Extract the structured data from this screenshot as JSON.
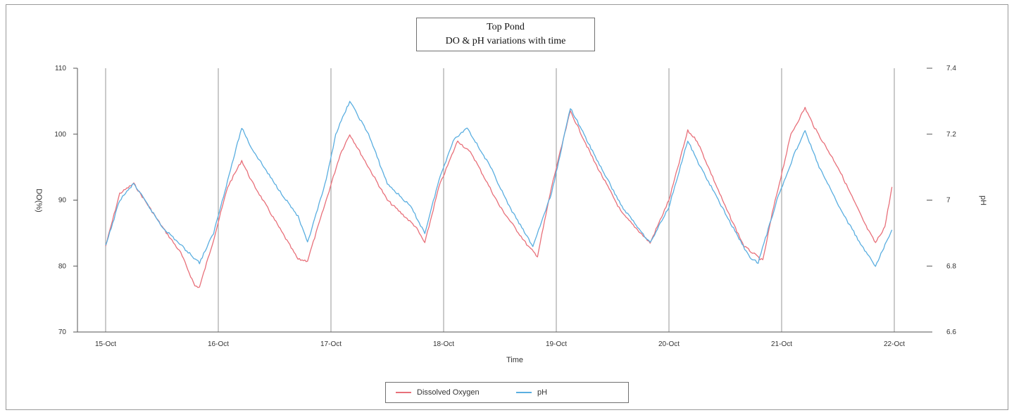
{
  "chart_data": {
    "type": "line",
    "title": "Top Pond",
    "subtitle": "DO & pH variations with time",
    "xlabel": "Time",
    "ylabel": "DO(%)",
    "y2label": "pH",
    "x_range": [
      "15-Oct",
      "22-Oct"
    ],
    "x_ticks": [
      "15-Oct",
      "16-Oct",
      "17-Oct",
      "18-Oct",
      "19-Oct",
      "20-Oct",
      "21-Oct",
      "22-Oct"
    ],
    "ylim": [
      70,
      110
    ],
    "y_ticks": [
      "70",
      "80",
      "90",
      "100",
      "110"
    ],
    "y2lim": [
      6.6,
      7.4
    ],
    "y2_ticks": [
      "6.6",
      "6.8",
      "7",
      "7.2",
      "7.4"
    ],
    "vertical_grid": true,
    "legend_position": "bottom",
    "series": [
      {
        "name": "Dissolved Oxygen",
        "axis": "left",
        "color": "#e8707a",
        "points": [
          [
            "15-Oct 00:00",
            83
          ],
          [
            "15-Oct 03:00",
            91
          ],
          [
            "15-Oct 06:00",
            92.5
          ],
          [
            "15-Oct 12:00",
            86
          ],
          [
            "15-Oct 16:00",
            82
          ],
          [
            "15-Oct 19:00",
            77
          ],
          [
            "15-Oct 20:00",
            76.8
          ],
          [
            "15-Oct 23:00",
            84
          ],
          [
            "16-Oct 02:00",
            92
          ],
          [
            "16-Oct 05:00",
            96
          ],
          [
            "16-Oct 07:00",
            93
          ],
          [
            "16-Oct 12:00",
            87
          ],
          [
            "16-Oct 17:00",
            81
          ],
          [
            "16-Oct 19:00",
            80.8
          ],
          [
            "16-Oct 23:00",
            90
          ],
          [
            "17-Oct 02:00",
            97
          ],
          [
            "17-Oct 04:00",
            100
          ],
          [
            "17-Oct 12:00",
            90
          ],
          [
            "17-Oct 18:00",
            86
          ],
          [
            "17-Oct 20:00",
            83.5
          ],
          [
            "17-Oct 23:00",
            92
          ],
          [
            "18-Oct 03:00",
            99
          ],
          [
            "18-Oct 06:00",
            97
          ],
          [
            "18-Oct 12:00",
            89
          ],
          [
            "18-Oct 18:00",
            83
          ],
          [
            "18-Oct 20:00",
            81.5
          ],
          [
            "18-Oct 23:00",
            92
          ],
          [
            "19-Oct 03:00",
            103.5
          ],
          [
            "19-Oct 08:00",
            96
          ],
          [
            "19-Oct 14:00",
            88
          ],
          [
            "19-Oct 20:00",
            83.5
          ],
          [
            "20-Oct 00:00",
            90
          ],
          [
            "20-Oct 04:00",
            100.5
          ],
          [
            "20-Oct 06:00",
            99
          ],
          [
            "20-Oct 12:00",
            89
          ],
          [
            "20-Oct 16:00",
            83
          ],
          [
            "20-Oct 20:00",
            80.8
          ],
          [
            "20-Oct 22:00",
            88
          ],
          [
            "21-Oct 02:00",
            100
          ],
          [
            "21-Oct 05:00",
            104
          ],
          [
            "21-Oct 07:00",
            101
          ],
          [
            "21-Oct 12:00",
            95
          ],
          [
            "21-Oct 18:00",
            86
          ],
          [
            "21-Oct 20:00",
            83.5
          ],
          [
            "21-Oct 22:00",
            86
          ],
          [
            "21-Oct 23:30",
            92
          ]
        ]
      },
      {
        "name": "pH",
        "axis": "right",
        "color": "#5aaee0",
        "points": [
          [
            "15-Oct 00:00",
            6.86
          ],
          [
            "15-Oct 03:00",
            7.0
          ],
          [
            "15-Oct 06:00",
            7.05
          ],
          [
            "15-Oct 12:00",
            6.92
          ],
          [
            "15-Oct 17:00",
            6.85
          ],
          [
            "15-Oct 20:00",
            6.81
          ],
          [
            "15-Oct 23:00",
            6.9
          ],
          [
            "16-Oct 02:00",
            7.06
          ],
          [
            "16-Oct 05:00",
            7.22
          ],
          [
            "16-Oct 07:00",
            7.16
          ],
          [
            "16-Oct 12:00",
            7.05
          ],
          [
            "16-Oct 17:00",
            6.95
          ],
          [
            "16-Oct 19:00",
            6.87
          ],
          [
            "16-Oct 23:00",
            7.06
          ],
          [
            "17-Oct 01:00",
            7.2
          ],
          [
            "17-Oct 04:00",
            7.3
          ],
          [
            "17-Oct 08:00",
            7.2
          ],
          [
            "17-Oct 12:00",
            7.05
          ],
          [
            "17-Oct 17:00",
            6.98
          ],
          [
            "17-Oct 20:00",
            6.9
          ],
          [
            "17-Oct 23:00",
            7.06
          ],
          [
            "18-Oct 02:00",
            7.18
          ],
          [
            "18-Oct 05:00",
            7.22
          ],
          [
            "18-Oct 10:00",
            7.1
          ],
          [
            "18-Oct 14:00",
            6.98
          ],
          [
            "18-Oct 19:00",
            6.86
          ],
          [
            "18-Oct 23:00",
            7.02
          ],
          [
            "19-Oct 03:00",
            7.28
          ],
          [
            "19-Oct 08:00",
            7.14
          ],
          [
            "19-Oct 14:00",
            6.98
          ],
          [
            "19-Oct 20:00",
            6.87
          ],
          [
            "20-Oct 00:00",
            6.98
          ],
          [
            "20-Oct 04:00",
            7.18
          ],
          [
            "20-Oct 06:00",
            7.12
          ],
          [
            "20-Oct 12:00",
            6.96
          ],
          [
            "20-Oct 17:00",
            6.83
          ],
          [
            "20-Oct 19:00",
            6.81
          ],
          [
            "20-Oct 23:00",
            7.0
          ],
          [
            "21-Oct 03:00",
            7.15
          ],
          [
            "21-Oct 05:00",
            7.21
          ],
          [
            "21-Oct 08:00",
            7.1
          ],
          [
            "21-Oct 13:00",
            6.96
          ],
          [
            "21-Oct 18:00",
            6.84
          ],
          [
            "21-Oct 20:00",
            6.8
          ],
          [
            "21-Oct 23:30",
            6.91
          ]
        ]
      }
    ]
  }
}
